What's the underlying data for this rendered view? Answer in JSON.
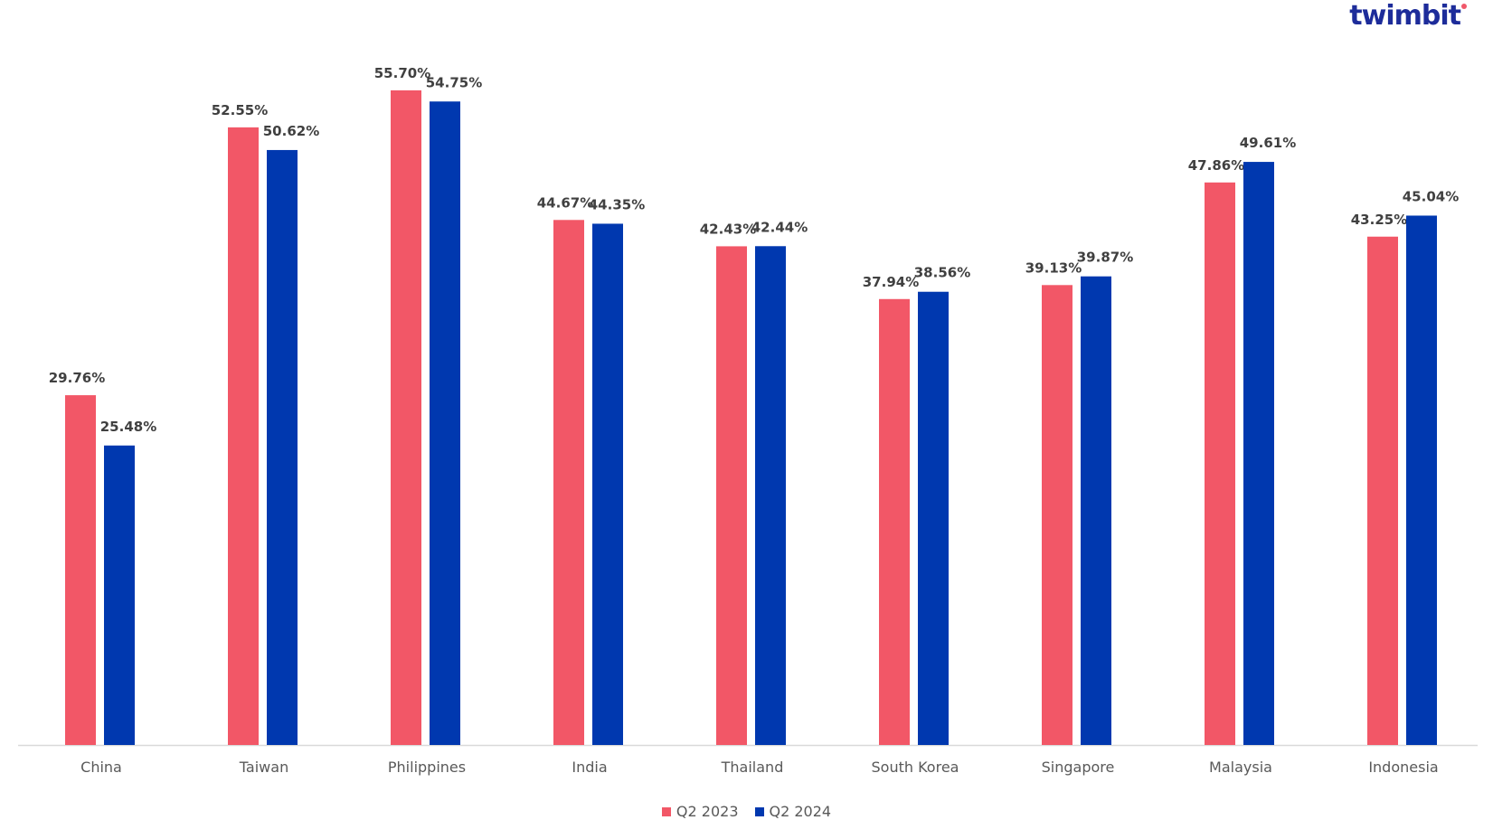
{
  "logo": {
    "text": "twimbit",
    "color": "#1d2c9a",
    "dot_color": "#f0586a"
  },
  "chart_data": {
    "type": "bar",
    "title": "",
    "xlabel": "",
    "ylabel": "",
    "ylim": [
      0,
      60
    ],
    "grid": false,
    "legend_position": "bottom-center",
    "categories": [
      "China",
      "Taiwan",
      "Philippines",
      "India",
      "Thailand",
      "South Korea",
      "Singapore",
      "Malaysia",
      "Indonesia"
    ],
    "series": [
      {
        "name": "Q2 2023",
        "color": "#f25767",
        "values": [
          29.76,
          52.55,
          55.7,
          44.67,
          42.43,
          37.94,
          39.13,
          47.86,
          43.25
        ],
        "labels": [
          "29.76%",
          "52.55%",
          "55.70%",
          "44.67%",
          "42.43%",
          "37.94%",
          "39.13%",
          "47.86%",
          "43.25%"
        ]
      },
      {
        "name": "Q2 2024",
        "color": "#0038af",
        "values": [
          25.48,
          50.62,
          54.75,
          44.35,
          42.44,
          38.56,
          39.87,
          49.61,
          45.04
        ],
        "labels": [
          "25.48%",
          "50.62%",
          "54.75%",
          "44.35%",
          "42.44%",
          "38.56%",
          "39.87%",
          "49.61%",
          "45.04%"
        ]
      }
    ]
  }
}
